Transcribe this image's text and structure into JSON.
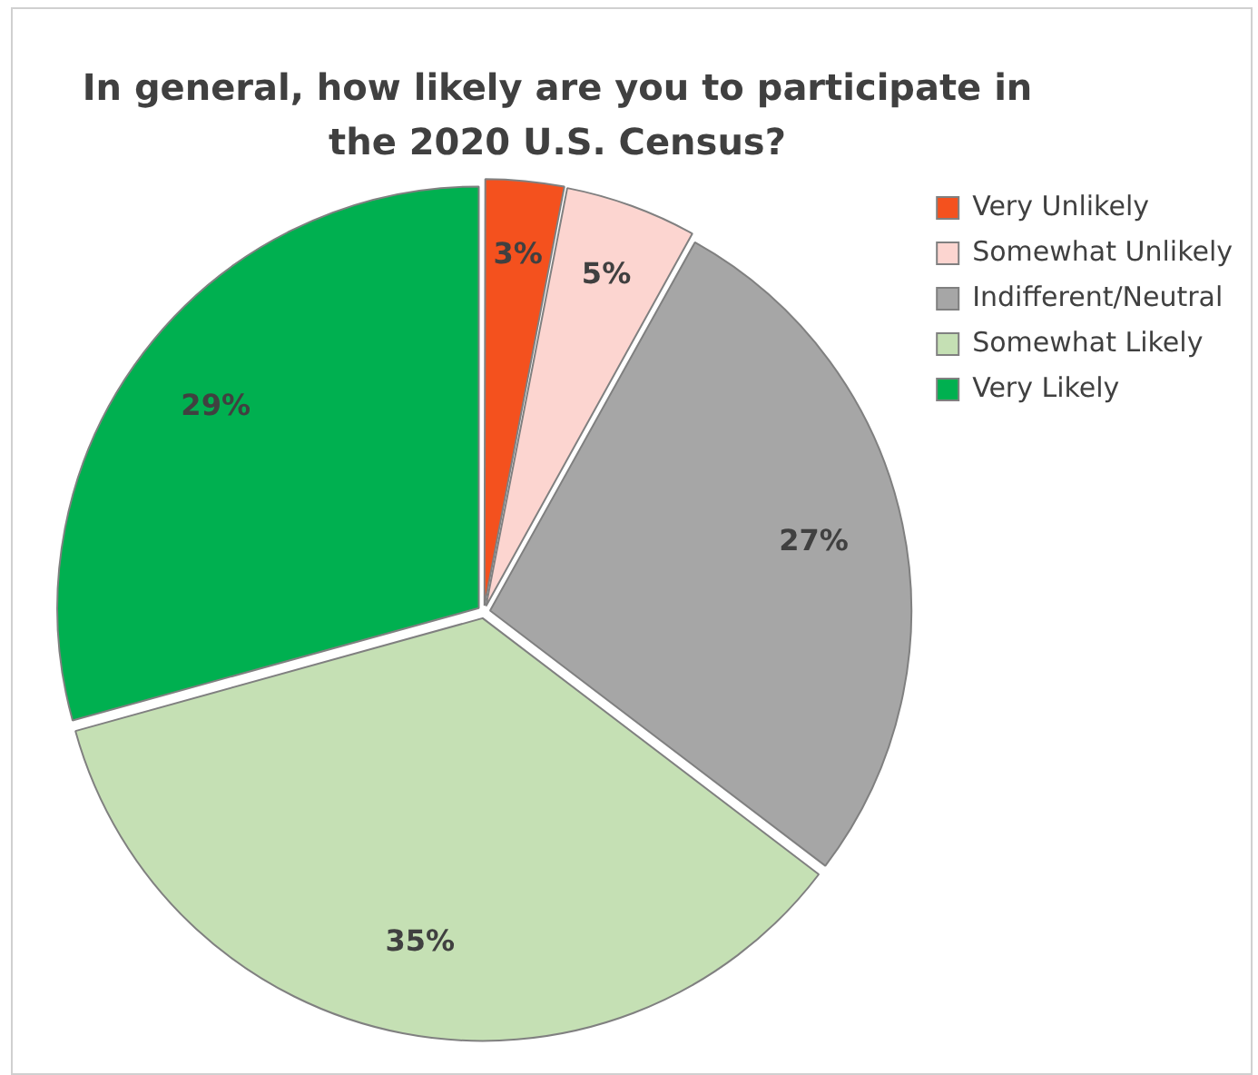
{
  "chart_data": {
    "type": "pie",
    "title": "In general, how likely are you to participate in the 2020 U.S. Census?",
    "categories": [
      "Very Unlikely",
      "Somewhat Unlikely",
      "Indifferent/Neutral",
      "Somewhat Likely",
      "Very Likely"
    ],
    "values": [
      3,
      5,
      27,
      35,
      29
    ],
    "value_labels": [
      "3%",
      "5%",
      "27%",
      "35%",
      "29%"
    ],
    "colors": [
      "#f4511e",
      "#fcd5d0",
      "#a6a6a6",
      "#c5e0b4",
      "#00b050"
    ],
    "legend": "right"
  }
}
